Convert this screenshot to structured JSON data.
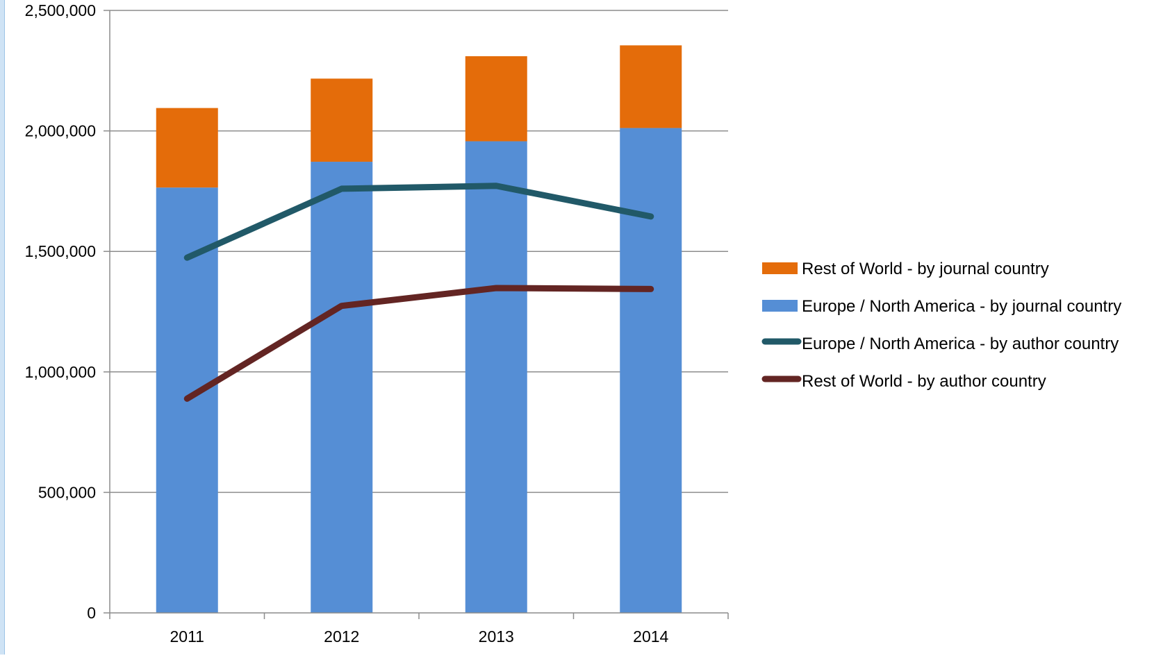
{
  "chart_data": {
    "type": "bar",
    "stacked": true,
    "title": "",
    "xlabel": "",
    "ylabel": "",
    "categories": [
      "2011",
      "2012",
      "2013",
      "2014"
    ],
    "ylim": [
      0,
      2500000
    ],
    "y_ticks": [
      0,
      500000,
      1000000,
      1500000,
      2000000,
      2500000
    ],
    "y_tick_labels": [
      "0",
      "500,000",
      "1,000,000",
      "1,500,000",
      "2,000,000",
      "2,500,000"
    ],
    "grid": true,
    "legend_position": "right",
    "bar_series": [
      {
        "name": "Europe / North America - by journal country",
        "color": "#558ED5",
        "values": [
          1765000,
          1872000,
          1957000,
          2012000
        ]
      },
      {
        "name": "Rest of World - by journal country",
        "color": "#E46C0A",
        "values": [
          330000,
          345000,
          353000,
          343000
        ]
      }
    ],
    "line_series": [
      {
        "name": "Europe / North America - by author country",
        "color": "#215968",
        "values": [
          1474000,
          1760000,
          1772000,
          1645000
        ]
      },
      {
        "name": "Rest of World - by author country",
        "color": "#632523",
        "values": [
          889000,
          1274000,
          1348000,
          1344000
        ]
      }
    ],
    "legend": [
      {
        "label": "Rest of World - by journal country",
        "kind": "bar",
        "color": "#E46C0A"
      },
      {
        "label": "Europe / North America - by journal country",
        "kind": "bar",
        "color": "#558ED5"
      },
      {
        "label": "Europe / North America - by author country",
        "kind": "line",
        "color": "#215968"
      },
      {
        "label": "Rest of World - by author country",
        "kind": "line",
        "color": "#632523"
      }
    ]
  }
}
